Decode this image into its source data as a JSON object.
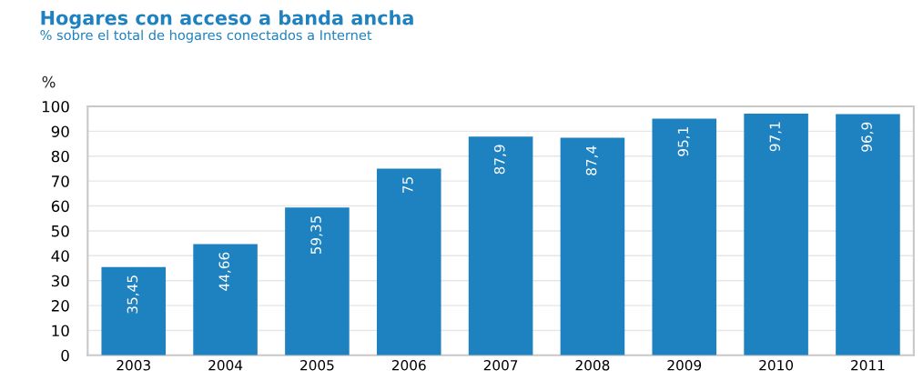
{
  "chart_data": {
    "type": "bar",
    "title": "Hogares con acceso a banda ancha",
    "subtitle": "% sobre el total de hogares conectados a Internet",
    "ylabel": "%",
    "categories": [
      "2003",
      "2004",
      "2005",
      "2006",
      "2007",
      "2008",
      "2009",
      "2010",
      "2011"
    ],
    "values": [
      35.45,
      44.66,
      59.35,
      75,
      87.9,
      87.4,
      95.1,
      97.1,
      96.9
    ],
    "value_labels": [
      "35,45",
      "44,66",
      "59,35",
      "75",
      "87,9",
      "87,4",
      "95,1",
      "97,1",
      "96,9"
    ],
    "color": "#1f82c0",
    "ylim": [
      0,
      100
    ],
    "yticks": [
      0,
      10,
      20,
      30,
      40,
      50,
      60,
      70,
      80,
      90,
      100
    ],
    "grid": "y"
  }
}
